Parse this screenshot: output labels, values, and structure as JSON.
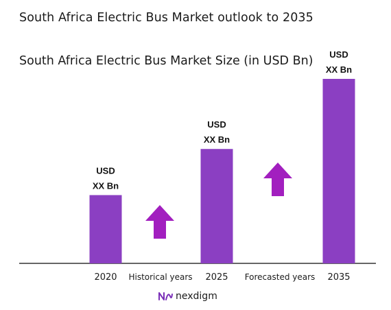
{
  "title": "South Africa Electric Bus Market outlook to 2035",
  "subtitle": "South Africa Electric Bus Market Size (in USD Bn)",
  "brand": "nexdigm",
  "colors": {
    "bar": "#8b3fc2",
    "arrow": "#a21fbf",
    "axis": "#333333",
    "text": "#1a1a1a"
  },
  "chart_data": {
    "type": "bar",
    "categories": [
      "2020",
      "2025",
      "2035"
    ],
    "values": [
      0.37,
      0.62,
      1.0
    ],
    "value_labels": [
      [
        "USD",
        "XX Bn"
      ],
      [
        "USD",
        "XX Bn"
      ],
      [
        "USD",
        "XX Bn"
      ]
    ],
    "period_labels": [
      "Historical years",
      "Forecasted years"
    ],
    "title": "South Africa Electric Bus Market outlook to 2035",
    "ylabel": "South Africa Electric Bus Market Size (in USD Bn)",
    "ylim": [
      0,
      1.0
    ],
    "grid": false,
    "legend": "none"
  }
}
